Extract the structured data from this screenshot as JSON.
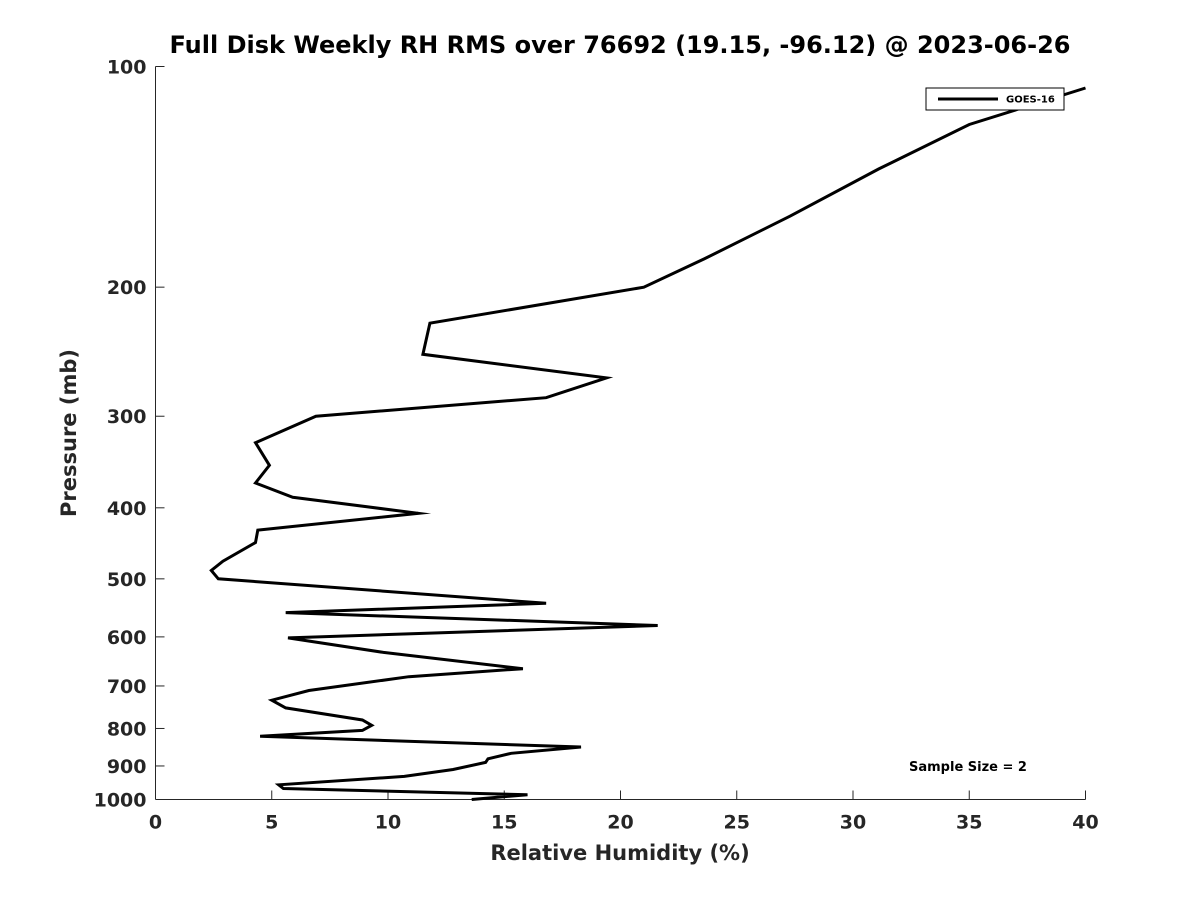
{
  "chart_data": {
    "type": "line",
    "title": "Full Disk Weekly RH RMS over 76692 (19.15, -96.12) @ 2023-06-26",
    "xlabel": "Relative Humidity (%)",
    "ylabel": "Pressure (mb)",
    "xlim": [
      0,
      40
    ],
    "ylim": [
      100,
      1000
    ],
    "y_scale": "log",
    "y_reversed": true,
    "x_ticks": [
      0,
      5,
      10,
      15,
      20,
      25,
      30,
      35,
      40
    ],
    "y_ticks": [
      100,
      200,
      300,
      400,
      500,
      600,
      700,
      800,
      900,
      1000
    ],
    "grid": false,
    "legend_position": "top-right",
    "annotation": "Sample Size = 2",
    "series": [
      {
        "name": "GOES-16",
        "color": "#000000",
        "x": [
          40.0,
          35.0,
          31.1,
          27.3,
          23.6,
          21.0,
          11.8,
          11.5,
          19.4,
          16.8,
          6.9,
          4.3,
          4.9,
          4.3,
          5.9,
          11.3,
          4.4,
          4.3,
          2.9,
          2.4,
          2.7,
          16.8,
          5.6,
          21.6,
          5.7,
          9.8,
          15.8,
          10.9,
          6.6,
          5.0,
          5.6,
          8.9,
          9.3,
          8.9,
          4.5,
          18.3,
          15.3,
          14.3,
          14.2,
          12.8,
          10.7,
          5.3,
          5.5,
          16.0,
          13.6
        ],
        "y": [
          107,
          120,
          138,
          160,
          183,
          200,
          224,
          247,
          266,
          283,
          300,
          326,
          350,
          370,
          387,
          407,
          429,
          446,
          473,
          487,
          500,
          540,
          556,
          579,
          602,
          630,
          663,
          680,
          710,
          732,
          750,
          779,
          792,
          805,
          820,
          848,
          865,
          880,
          890,
          910,
          930,
          955,
          966,
          985,
          1000
        ]
      }
    ]
  }
}
